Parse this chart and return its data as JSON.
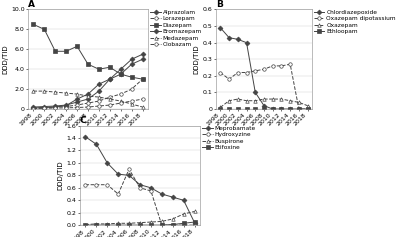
{
  "years": [
    1998,
    2000,
    2002,
    2004,
    2006,
    2008,
    2010,
    2012,
    2014,
    2016,
    2018
  ],
  "A": {
    "title": "A",
    "ylabel": "DDD/TID",
    "ylim": [
      0,
      10.0
    ],
    "yticks": [
      0,
      2.0,
      4.0,
      6.0,
      8.0,
      10.0
    ],
    "ytick_labels": [
      "0",
      "2.0",
      "4.0",
      "6.0",
      "8.0",
      "10.0"
    ],
    "series": {
      "Alprazolam": [
        0.2,
        0.25,
        0.3,
        0.4,
        0.7,
        1.0,
        1.8,
        3.0,
        4.0,
        5.0,
        5.5
      ],
      "Lorazepam": [
        0.1,
        0.15,
        0.2,
        0.25,
        0.4,
        0.6,
        0.8,
        1.2,
        1.5,
        2.0,
        3.0
      ],
      "Diazepam": [
        8.5,
        8.0,
        5.8,
        5.8,
        6.3,
        4.5,
        4.0,
        4.2,
        3.5,
        3.2,
        3.0
      ],
      "Bromazepam": [
        0.1,
        0.15,
        0.2,
        0.35,
        1.0,
        1.5,
        2.5,
        3.0,
        3.5,
        4.5,
        5.0
      ],
      "Medazepam": [
        1.8,
        1.8,
        1.7,
        1.6,
        1.5,
        1.3,
        1.2,
        1.0,
        0.8,
        0.5,
        0.2
      ],
      "Clobazam": [
        0.05,
        0.08,
        0.1,
        0.12,
        0.15,
        0.2,
        0.3,
        0.4,
        0.6,
        0.8,
        1.0
      ]
    },
    "markers": [
      "D",
      "o",
      "s",
      "D",
      "^",
      "o"
    ],
    "linestyles": [
      "-",
      "--",
      "-",
      "-",
      "--",
      "--"
    ],
    "filled": [
      true,
      false,
      true,
      true,
      false,
      false
    ]
  },
  "B": {
    "title": "B",
    "ylabel": "DDD/TID",
    "ylim": [
      0,
      0.6
    ],
    "yticks": [
      0,
      0.1,
      0.2,
      0.3,
      0.4,
      0.5,
      0.6
    ],
    "ytick_labels": [
      "0",
      "0.1",
      "0.2",
      "0.3",
      "0.4",
      "0.5",
      "0.6"
    ],
    "series": {
      "Chlordiazepoxide": [
        0.49,
        0.43,
        0.42,
        0.4,
        0.1,
        0.02,
        0.0,
        0.0,
        0.0,
        0.0,
        0.0
      ],
      "Oxazepam dipotassium": [
        0.22,
        0.18,
        0.22,
        0.22,
        0.23,
        0.24,
        0.26,
        0.26,
        0.27,
        0.0,
        0.0
      ],
      "Oxazepam": [
        0.01,
        0.05,
        0.06,
        0.05,
        0.05,
        0.06,
        0.06,
        0.06,
        0.05,
        0.04,
        0.02
      ],
      "Ethloopam": [
        0.0,
        0.0,
        0.0,
        0.0,
        0.0,
        0.0,
        0.0,
        0.0,
        0.0,
        0.0,
        0.0
      ]
    },
    "markers": [
      "D",
      "o",
      "^",
      "s"
    ],
    "linestyles": [
      "-",
      "--",
      "--",
      "-"
    ],
    "filled": [
      true,
      false,
      false,
      true
    ]
  },
  "C": {
    "title": "C",
    "ylabel": "DDD/TID",
    "ylim": [
      0,
      1.6
    ],
    "yticks": [
      0.0,
      0.2,
      0.4,
      0.6,
      0.8,
      1.0,
      1.2,
      1.4,
      1.6
    ],
    "ytick_labels": [
      "0.0",
      "0.2",
      "0.4",
      "0.6",
      "0.8",
      "1.0",
      "1.2",
      "1.4",
      "1.6"
    ],
    "series": {
      "Meprobamate": [
        1.42,
        1.3,
        1.0,
        0.82,
        0.8,
        0.65,
        0.6,
        0.5,
        0.45,
        0.4,
        0.04
      ],
      "Hydroxyzine": [
        0.65,
        0.65,
        0.65,
        0.5,
        0.9,
        0.6,
        0.55,
        0.0,
        0.0,
        0.0,
        0.0
      ],
      "Buspirone": [
        0.01,
        0.02,
        0.02,
        0.03,
        0.03,
        0.04,
        0.05,
        0.06,
        0.1,
        0.18,
        0.22
      ],
      "Etifoxine": [
        0.0,
        0.0,
        0.0,
        0.0,
        0.0,
        0.0,
        0.0,
        0.0,
        0.01,
        0.03,
        0.05
      ]
    },
    "markers": [
      "D",
      "o",
      "^",
      "s"
    ],
    "linestyles": [
      "-",
      "--",
      "--",
      "-"
    ],
    "filled": [
      true,
      false,
      false,
      true
    ]
  },
  "line_color": "#444444",
  "marker_size": 2.5,
  "linewidth": 0.7,
  "tick_label_fontsize": 4.5,
  "axis_label_fontsize": 5,
  "legend_fontsize": 4.2,
  "title_fontsize": 6.5
}
